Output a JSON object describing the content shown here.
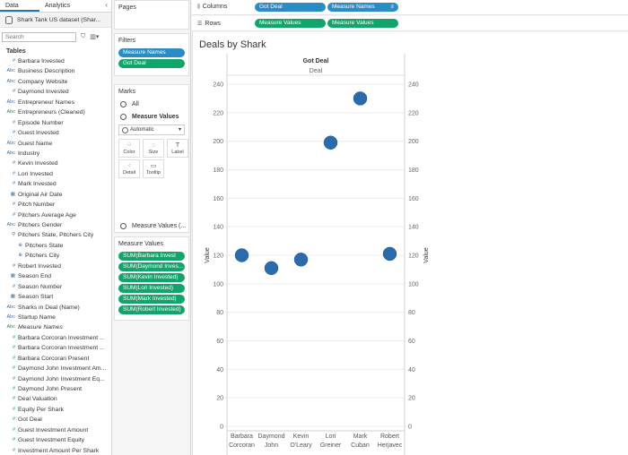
{
  "pane_tabs": {
    "data": "Data",
    "analytics": "Analytics",
    "collapse": "‹"
  },
  "datasource": {
    "name": "Shark Tank US dataset (Shar..."
  },
  "search": {
    "placeholder": "Search"
  },
  "tables_heading": "Tables",
  "fields": [
    {
      "icon": "#",
      "name": "Barbara Invested"
    },
    {
      "icon": "Abc",
      "name": "Business Description"
    },
    {
      "icon": "Abc",
      "name": "Company Website"
    },
    {
      "icon": "#",
      "name": "Daymond Invested"
    },
    {
      "icon": "Abc",
      "name": "Entrepreneur Names"
    },
    {
      "icon": "Abc",
      "name": "Entrepreneurs (Cleaned)"
    },
    {
      "icon": "#",
      "name": "Episode Number"
    },
    {
      "icon": "#",
      "name": "Guest Invested"
    },
    {
      "icon": "Abc",
      "name": "Guest Name"
    },
    {
      "icon": "Abc",
      "name": "Industry"
    },
    {
      "icon": "#",
      "name": "Kevin Invested"
    },
    {
      "icon": "#",
      "name": "Lori Invested"
    },
    {
      "icon": "#",
      "name": "Mark Invested"
    },
    {
      "icon": "▦",
      "name": "Original Air Date"
    },
    {
      "icon": "#",
      "name": "Pitch Number"
    },
    {
      "icon": "#",
      "name": "Pitchers Average Age"
    },
    {
      "icon": "Abc",
      "name": "Pitchers Gender"
    },
    {
      "icon": "⚲",
      "name": "Pitchers State, Pitchers City",
      "hierarchy": true
    },
    {
      "icon": "⊕",
      "name": "Pitchers State",
      "indent": true
    },
    {
      "icon": "⊕",
      "name": "Pitchers City",
      "indent": true
    },
    {
      "icon": "#",
      "name": "Robert Invested"
    },
    {
      "icon": "▦",
      "name": "Season End"
    },
    {
      "icon": "#",
      "name": "Season Number"
    },
    {
      "icon": "▦",
      "name": "Season Start"
    },
    {
      "icon": "Abc",
      "name": "Sharks in Deal (Name)"
    },
    {
      "icon": "Abc",
      "name": "Startup Name"
    },
    {
      "icon": "Abc",
      "name": "Measure Names",
      "italic": true
    },
    {
      "icon": "#",
      "name": "Barbara Corcoran Investment ...",
      "measure": true
    },
    {
      "icon": "#",
      "name": "Barbara Corcoran Investment ...",
      "measure": true
    },
    {
      "icon": "#",
      "name": "Barbara Corcoran Present",
      "measure": true
    },
    {
      "icon": "#",
      "name": "Daymond John Investment Am...",
      "measure": true
    },
    {
      "icon": "#",
      "name": "Daymond John Investment Eq...",
      "measure": true
    },
    {
      "icon": "#",
      "name": "Daymond John Present",
      "measure": true
    },
    {
      "icon": "#",
      "name": "Deal Valuation",
      "measure": true
    },
    {
      "icon": "#",
      "name": "Equity Per Shark",
      "measure": true
    },
    {
      "icon": "#",
      "name": "Got Deal",
      "measure": true
    },
    {
      "icon": "#",
      "name": "Guest Investment Amount",
      "measure": true
    },
    {
      "icon": "#",
      "name": "Guest Investment Equity",
      "measure": true
    },
    {
      "icon": "#",
      "name": "Investment Amount Per Shark",
      "measure": true
    }
  ],
  "pages_card": {
    "title": "Pages"
  },
  "filters_card": {
    "title": "Filters",
    "pills": [
      "Measure Names",
      "Got Deal"
    ]
  },
  "marks_card": {
    "title": "Marks",
    "all_label": "All",
    "measure_values_label": "Measure Values",
    "mark_type": "Automatic",
    "buttons": [
      {
        "name": "color",
        "label": "Color",
        "glyph": "⁘"
      },
      {
        "name": "size",
        "label": "Size",
        "glyph": "◌"
      },
      {
        "name": "label",
        "label": "Label",
        "glyph": "T"
      },
      {
        "name": "detail",
        "label": "Detail",
        "glyph": "⁖"
      },
      {
        "name": "tooltip",
        "label": "Tooltip",
        "glyph": "▭"
      }
    ],
    "measure_values_bottom": "Measure Values (..."
  },
  "measure_values_card": {
    "title": "Measure Values",
    "pills": [
      "SUM(Barbara Invest",
      "SUM(Daymond Inves...",
      "SUM(Kevin Invested)",
      "SUM(Lori Invested)",
      "SUM(Mark Invested)",
      "SUM(Robert Invested)"
    ]
  },
  "columns_shelf": {
    "label": "Columns",
    "pills": [
      "Got Deal",
      "Measure Names"
    ]
  },
  "rows_shelf": {
    "label": "Rows",
    "pills": [
      "Measure Values",
      "Measure Values"
    ]
  },
  "view": {
    "title": "Deals by Shark"
  },
  "chart_data": {
    "type": "scatter",
    "title": "Deals by Shark",
    "header_field": "Got Deal",
    "header_value": "Deal",
    "ylabel": "Value",
    "ylim": [
      0,
      240
    ],
    "yticks": [
      0,
      20,
      40,
      60,
      80,
      100,
      120,
      140,
      160,
      180,
      200,
      220,
      240
    ],
    "dual_axis": true,
    "grid": "horizontal",
    "categories": [
      [
        "Barbara",
        "Corcoran"
      ],
      [
        "Daymond",
        "John"
      ],
      [
        "Kevin",
        "O'Leary"
      ],
      [
        "Lori",
        "Greiner"
      ],
      [
        "Mark",
        "Cuban"
      ],
      [
        "Robert",
        "Herjavec"
      ]
    ],
    "values": [
      120,
      111,
      117,
      199,
      230,
      121
    ],
    "mark_color": "#2b6bab"
  }
}
